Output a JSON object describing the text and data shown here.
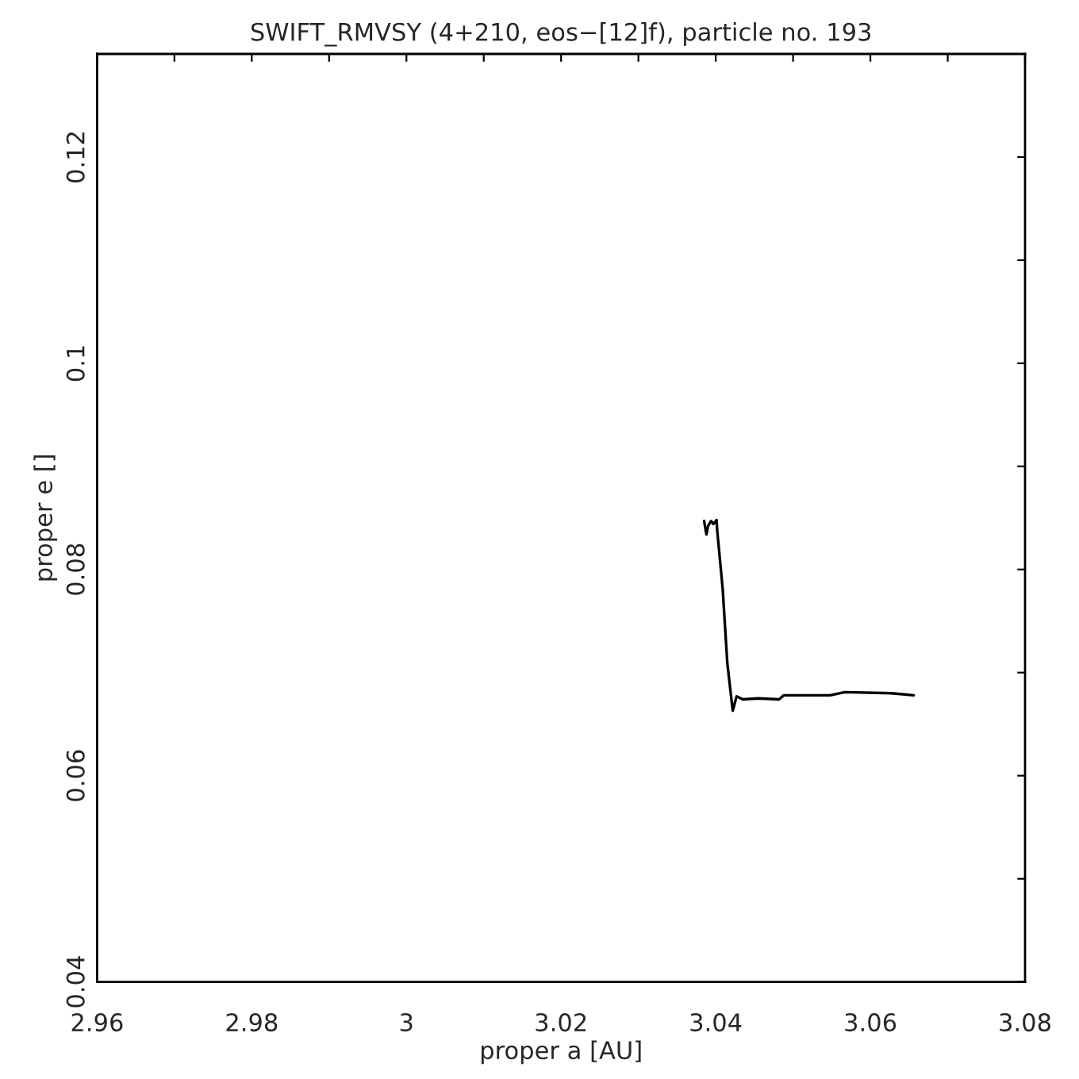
{
  "chart_data": {
    "type": "line",
    "title": "SWIFT_RMVSY (4+210, eos−[12]f), particle no. 193",
    "xlabel": "proper a [AU]",
    "ylabel": "proper e []",
    "xlim": [
      2.96,
      3.08
    ],
    "ylim": [
      0.04,
      0.13
    ],
    "xticks": [
      2.96,
      {
        "value": 2.97,
        "label": null
      },
      2.98,
      {
        "value": 2.99,
        "label": null
      },
      3,
      {
        "value": 3.01,
        "label": null
      },
      3.02,
      {
        "value": 3.03,
        "label": null
      },
      3.04,
      {
        "value": 3.05,
        "label": null
      },
      3.06,
      {
        "value": 3.07,
        "label": null
      },
      3.08
    ],
    "yticks": [
      0.04,
      {
        "value": 0.05,
        "label": null
      },
      0.06,
      {
        "value": 0.07,
        "label": null
      },
      0.08,
      {
        "value": 0.09,
        "label": null
      },
      0.1,
      {
        "value": 0.11,
        "label": null
      },
      0.12
    ],
    "grid": false,
    "legend": false,
    "series": [
      {
        "color": "#000000",
        "x": [
          3.0385,
          3.0388,
          3.039,
          3.0394,
          3.0397,
          3.0401,
          3.0402,
          3.0409,
          3.0415,
          3.0422,
          3.0427,
          3.0435,
          3.0455,
          3.0482,
          3.0488,
          3.0548,
          3.0567,
          3.0627,
          3.0656
        ],
        "values": [
          0.0847,
          0.0834,
          0.0842,
          0.0847,
          0.0844,
          0.0848,
          0.0837,
          0.0781,
          0.0709,
          0.0663,
          0.0677,
          0.0674,
          0.0675,
          0.0674,
          0.0678,
          0.0678,
          0.0681,
          0.068,
          0.0678
        ]
      }
    ]
  }
}
